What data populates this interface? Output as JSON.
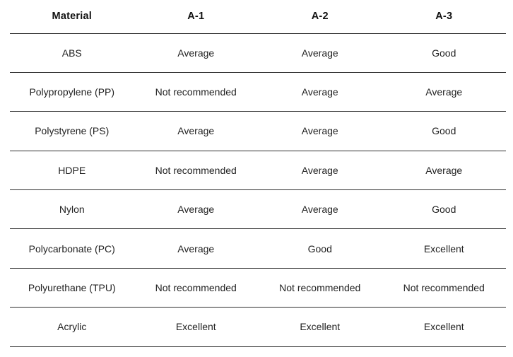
{
  "colors": {
    "text": "#222222",
    "header_text": "#111111",
    "border": "#2e2e2e",
    "background": "#ffffff"
  },
  "table": {
    "columns": [
      "Material",
      "A-1",
      "A-2",
      "A-3"
    ],
    "rows": [
      {
        "material": "ABS",
        "values": [
          "Average",
          "Average",
          "Good"
        ]
      },
      {
        "material": "Polypropylene (PP)",
        "values": [
          "Not recommended",
          "Average",
          "Average"
        ]
      },
      {
        "material": "Polystyrene (PS)",
        "values": [
          "Average",
          "Average",
          "Good"
        ]
      },
      {
        "material": "HDPE",
        "values": [
          "Not recommended",
          "Average",
          "Average"
        ]
      },
      {
        "material": "Nylon",
        "values": [
          "Average",
          "Average",
          "Good"
        ]
      },
      {
        "material": "Polycarbonate (PC)",
        "values": [
          "Average",
          "Good",
          "Excellent"
        ]
      },
      {
        "material": "Polyurethane (TPU)",
        "values": [
          "Not recommended",
          "Not recommended",
          "Not recommended"
        ]
      },
      {
        "material": "Acrylic",
        "values": [
          "Excellent",
          "Excellent",
          "Excellent"
        ]
      }
    ]
  }
}
